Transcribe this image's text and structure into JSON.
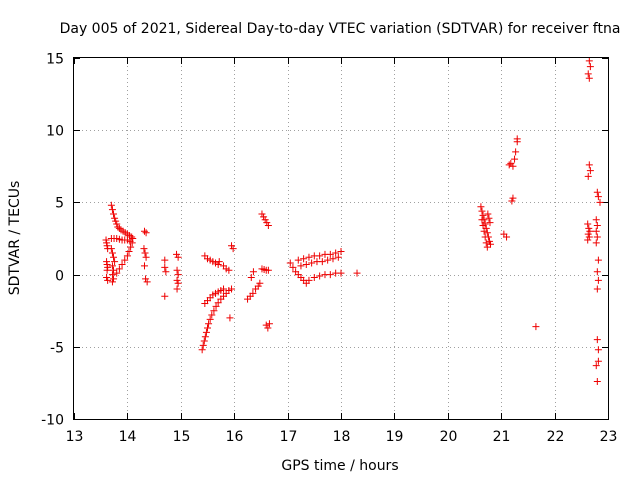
{
  "chart_data": {
    "type": "scatter",
    "title": "Day 005 of 2021, Sidereal Day-to-day VTEC variation (SDTVAR) for receiver ftna",
    "xlabel": "GPS time / hours",
    "ylabel": "SDTVAR / TECUs",
    "xlim": [
      13,
      23
    ],
    "ylim": [
      -10,
      15
    ],
    "xticks": [
      "13",
      "14",
      "15",
      "16",
      "17",
      "18",
      "19",
      "20",
      "21",
      "22",
      "23"
    ],
    "yticks": [
      "-10",
      "-5",
      "0",
      "5",
      "10",
      "15"
    ],
    "grid": true,
    "marker": "plus",
    "color": "#ee0000",
    "series": [
      {
        "name": "SDTVAR",
        "points": [
          [
            13.6,
            2.4
          ],
          [
            13.61,
            2.2
          ],
          [
            13.62,
            2.0
          ],
          [
            13.63,
            1.8
          ],
          [
            13.61,
            0.9
          ],
          [
            13.62,
            0.7
          ],
          [
            13.63,
            0.5
          ],
          [
            13.62,
            0.3
          ],
          [
            13.61,
            -0.2
          ],
          [
            13.63,
            -0.4
          ],
          [
            13.7,
            4.8
          ],
          [
            13.72,
            4.5
          ],
          [
            13.74,
            4.2
          ],
          [
            13.76,
            3.9
          ],
          [
            13.78,
            3.7
          ],
          [
            13.8,
            3.5
          ],
          [
            13.82,
            3.3
          ],
          [
            13.85,
            3.2
          ],
          [
            13.88,
            3.1
          ],
          [
            13.92,
            3.0
          ],
          [
            13.96,
            2.9
          ],
          [
            14.0,
            2.8
          ],
          [
            14.04,
            2.7
          ],
          [
            14.08,
            2.6
          ],
          [
            14.1,
            2.5
          ],
          [
            13.7,
            2.5
          ],
          [
            13.75,
            2.5
          ],
          [
            13.8,
            2.5
          ],
          [
            13.85,
            2.45
          ],
          [
            13.9,
            2.4
          ],
          [
            13.95,
            2.4
          ],
          [
            14.0,
            2.4
          ],
          [
            14.05,
            2.3
          ],
          [
            13.7,
            1.8
          ],
          [
            13.72,
            1.5
          ],
          [
            13.74,
            1.2
          ],
          [
            13.76,
            0.9
          ],
          [
            13.72,
            0.6
          ],
          [
            13.74,
            0.3
          ],
          [
            13.72,
            0.0
          ],
          [
            13.74,
            -0.3
          ],
          [
            13.72,
            -0.5
          ],
          [
            13.8,
            0.1
          ],
          [
            13.85,
            0.4
          ],
          [
            13.9,
            0.7
          ],
          [
            13.95,
            1.0
          ],
          [
            14.0,
            1.3
          ],
          [
            14.03,
            1.6
          ],
          [
            14.06,
            1.9
          ],
          [
            14.09,
            2.2
          ],
          [
            14.32,
            3.0
          ],
          [
            14.35,
            2.9
          ],
          [
            14.31,
            1.8
          ],
          [
            14.33,
            1.5
          ],
          [
            14.35,
            1.2
          ],
          [
            14.32,
            0.6
          ],
          [
            14.34,
            -0.3
          ],
          [
            14.37,
            -0.5
          ],
          [
            14.7,
            1.0
          ],
          [
            14.7,
            0.5
          ],
          [
            14.72,
            0.2
          ],
          [
            14.7,
            -1.5
          ],
          [
            14.92,
            1.4
          ],
          [
            14.95,
            1.2
          ],
          [
            14.93,
            0.3
          ],
          [
            14.95,
            0.0
          ],
          [
            14.93,
            -0.4
          ],
          [
            14.95,
            -0.6
          ],
          [
            14.93,
            -1.0
          ],
          [
            15.4,
            -5.2
          ],
          [
            15.42,
            -4.9
          ],
          [
            15.44,
            -4.6
          ],
          [
            15.46,
            -4.3
          ],
          [
            15.48,
            -4.0
          ],
          [
            15.5,
            -3.7
          ],
          [
            15.52,
            -3.4
          ],
          [
            15.55,
            -3.1
          ],
          [
            15.58,
            -2.8
          ],
          [
            15.62,
            -2.5
          ],
          [
            15.66,
            -2.2
          ],
          [
            15.7,
            -1.95
          ],
          [
            15.75,
            -1.7
          ],
          [
            15.8,
            -1.5
          ],
          [
            15.85,
            -1.3
          ],
          [
            15.9,
            -1.1
          ],
          [
            15.95,
            -1.0
          ],
          [
            15.45,
            -2.0
          ],
          [
            15.5,
            -1.8
          ],
          [
            15.55,
            -1.6
          ],
          [
            15.6,
            -1.4
          ],
          [
            15.65,
            -1.3
          ],
          [
            15.7,
            -1.2
          ],
          [
            15.75,
            -1.1
          ],
          [
            15.8,
            -1.0
          ],
          [
            15.45,
            1.3
          ],
          [
            15.5,
            1.1
          ],
          [
            15.55,
            1.0
          ],
          [
            15.6,
            0.9
          ],
          [
            15.65,
            0.8
          ],
          [
            15.7,
            0.7
          ],
          [
            15.72,
            0.9
          ],
          [
            15.8,
            0.6
          ],
          [
            15.85,
            0.4
          ],
          [
            15.9,
            0.3
          ],
          [
            15.92,
            -3.0
          ],
          [
            15.95,
            2.0
          ],
          [
            15.98,
            1.8
          ],
          [
            16.25,
            -1.7
          ],
          [
            16.3,
            -1.5
          ],
          [
            16.35,
            -1.3
          ],
          [
            16.4,
            -1.0
          ],
          [
            16.45,
            -0.8
          ],
          [
            16.48,
            -0.6
          ],
          [
            16.32,
            -0.2
          ],
          [
            16.36,
            0.2
          ],
          [
            16.52,
            4.2
          ],
          [
            16.55,
            4.0
          ],
          [
            16.58,
            3.8
          ],
          [
            16.61,
            3.6
          ],
          [
            16.64,
            3.4
          ],
          [
            16.52,
            0.4
          ],
          [
            16.56,
            0.35
          ],
          [
            16.6,
            0.3
          ],
          [
            16.64,
            0.3
          ],
          [
            16.6,
            -3.5
          ],
          [
            16.63,
            -3.7
          ],
          [
            16.66,
            -3.4
          ],
          [
            17.05,
            0.8
          ],
          [
            17.1,
            0.5
          ],
          [
            17.15,
            0.2
          ],
          [
            17.2,
            0.0
          ],
          [
            17.25,
            -0.2
          ],
          [
            17.3,
            -0.4
          ],
          [
            17.35,
            -0.6
          ],
          [
            17.4,
            -0.4
          ],
          [
            17.5,
            -0.2
          ],
          [
            17.6,
            -0.1
          ],
          [
            17.7,
            0.0
          ],
          [
            17.8,
            0.0
          ],
          [
            17.9,
            0.1
          ],
          [
            18.0,
            0.1
          ],
          [
            17.2,
            1.0
          ],
          [
            17.3,
            1.1
          ],
          [
            17.4,
            1.2
          ],
          [
            17.5,
            1.3
          ],
          [
            17.6,
            1.3
          ],
          [
            17.7,
            1.4
          ],
          [
            17.8,
            1.4
          ],
          [
            17.9,
            1.5
          ],
          [
            18.0,
            1.6
          ],
          [
            17.25,
            0.6
          ],
          [
            17.35,
            0.7
          ],
          [
            17.45,
            0.8
          ],
          [
            17.55,
            0.9
          ],
          [
            17.65,
            0.9
          ],
          [
            17.75,
            1.0
          ],
          [
            17.85,
            1.1
          ],
          [
            17.95,
            1.2
          ],
          [
            18.3,
            0.1
          ],
          [
            20.62,
            4.7
          ],
          [
            20.64,
            4.4
          ],
          [
            20.66,
            4.1
          ],
          [
            20.68,
            3.8
          ],
          [
            20.7,
            3.5
          ],
          [
            20.72,
            3.2
          ],
          [
            20.74,
            2.9
          ],
          [
            20.76,
            2.6
          ],
          [
            20.78,
            2.3
          ],
          [
            20.8,
            2.1
          ],
          [
            20.64,
            3.8
          ],
          [
            20.66,
            3.4
          ],
          [
            20.68,
            3.0
          ],
          [
            20.7,
            2.6
          ],
          [
            20.72,
            2.2
          ],
          [
            20.74,
            1.9
          ],
          [
            20.75,
            4.2
          ],
          [
            20.77,
            3.9
          ],
          [
            20.79,
            3.6
          ],
          [
            21.05,
            2.8
          ],
          [
            21.1,
            2.6
          ],
          [
            21.15,
            7.6
          ],
          [
            21.18,
            7.7
          ],
          [
            21.22,
            7.5
          ],
          [
            21.2,
            5.1
          ],
          [
            21.22,
            5.3
          ],
          [
            21.25,
            8.0
          ],
          [
            21.27,
            8.5
          ],
          [
            21.3,
            9.4
          ],
          [
            21.3,
            9.2
          ],
          [
            21.65,
            -3.6
          ],
          [
            22.65,
            14.8
          ],
          [
            22.67,
            14.4
          ],
          [
            22.63,
            13.9
          ],
          [
            22.65,
            13.6
          ],
          [
            22.65,
            7.6
          ],
          [
            22.67,
            7.2
          ],
          [
            22.63,
            6.8
          ],
          [
            22.62,
            3.5
          ],
          [
            22.64,
            3.2
          ],
          [
            22.66,
            3.0
          ],
          [
            22.63,
            2.8
          ],
          [
            22.65,
            2.6
          ],
          [
            22.62,
            2.4
          ],
          [
            22.8,
            5.7
          ],
          [
            22.82,
            5.4
          ],
          [
            22.85,
            5.0
          ],
          [
            22.78,
            3.8
          ],
          [
            22.8,
            3.4
          ],
          [
            22.78,
            3.0
          ],
          [
            22.8,
            2.6
          ],
          [
            22.78,
            2.2
          ],
          [
            22.82,
            1.0
          ],
          [
            22.8,
            0.2
          ],
          [
            22.82,
            -0.4
          ],
          [
            22.8,
            -1.0
          ],
          [
            22.8,
            -4.5
          ],
          [
            22.82,
            -5.2
          ],
          [
            22.82,
            -6.0
          ],
          [
            22.78,
            -6.3
          ],
          [
            22.8,
            -7.4
          ]
        ]
      }
    ]
  }
}
